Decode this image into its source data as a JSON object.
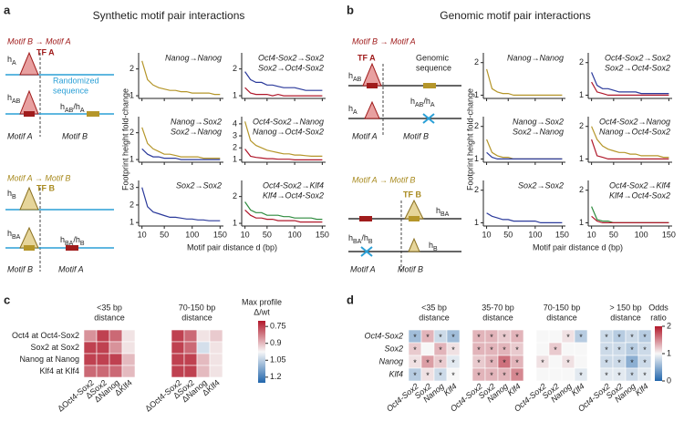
{
  "x": [
    10,
    20,
    30,
    40,
    50,
    60,
    70,
    80,
    90,
    100,
    110,
    120,
    130,
    140,
    150
  ],
  "xlim": [
    4,
    156
  ],
  "xticks": [
    10,
    50,
    100,
    150
  ],
  "a": {
    "label": "a",
    "title": "Synthetic motif pair interactions",
    "y_label": "Footprint height fold-change",
    "x_label": "Motif pair distance d (bp)",
    "diagram": {
      "title_top": "Motif B → Motif A",
      "h_top": [
        "h",
        "A"
      ],
      "tf_top": "TF A",
      "seq": [
        "Randomized",
        "sequence"
      ],
      "h_mid": [
        "h",
        "AB"
      ],
      "ratio_top": [
        "h",
        "AB",
        "/h",
        "A"
      ],
      "motif_a": "Motif A",
      "motif_b": "Motif B",
      "title_bottom": "Motif A → Motif B",
      "h_b": [
        "h",
        "B"
      ],
      "tf_bottom": "TF B",
      "h_ba": [
        "h",
        "BA"
      ],
      "ratio_bottom": [
        "h",
        "BA",
        "/h",
        "B"
      ],
      "motif_b2": "Motif B",
      "motif_a2": "Motif A"
    },
    "plots": [
      {
        "ylim": [
          0.9,
          2.6
        ],
        "yticks": [
          1,
          2
        ],
        "texts": [
          {
            "text": "Nanog→Nanog",
            "color": "#a88a1e"
          }
        ],
        "series": [
          {
            "color": "#b5962a",
            "values": [
              2.3,
              1.6,
              1.4,
              1.3,
              1.25,
              1.2,
              1.2,
              1.15,
              1.15,
              1.1,
              1.1,
              1.1,
              1.1,
              1.05,
              1.05
            ]
          }
        ]
      },
      {
        "ylim": [
          0.9,
          2.6
        ],
        "yticks": [
          1,
          2
        ],
        "texts": [
          {
            "text": "Oct4-Sox2→Sox2",
            "color": "#2b3a9b"
          },
          {
            "text": "Sox2→Oct4-Sox2",
            "color": "#b0182b"
          }
        ],
        "series": [
          {
            "color": "#2b3a9b",
            "values": [
              1.9,
              1.6,
              1.5,
              1.5,
              1.4,
              1.4,
              1.35,
              1.3,
              1.3,
              1.3,
              1.25,
              1.2,
              1.2,
              1.2,
              1.2
            ]
          },
          {
            "color": "#b0182b",
            "values": [
              1.3,
              1.1,
              1.05,
              1.05,
              1.05,
              1.0,
              1.05,
              1.0,
              1.0,
              1.0,
              1.0,
              1.0,
              1.0,
              1.0,
              1.0
            ]
          }
        ]
      },
      {
        "ylim": [
          0.9,
          2.6
        ],
        "yticks": [
          1,
          2
        ],
        "texts": [
          {
            "text": "Nanog→Sox2",
            "color": "#2b3a9b"
          },
          {
            "text": "Sox2→Nanog",
            "color": "#a88a1e"
          }
        ],
        "series": [
          {
            "color": "#b5962a",
            "values": [
              2.2,
              1.6,
              1.4,
              1.3,
              1.2,
              1.2,
              1.15,
              1.1,
              1.1,
              1.1,
              1.1,
              1.05,
              1.05,
              1.05,
              1.05
            ]
          },
          {
            "color": "#2b3a9b",
            "values": [
              1.4,
              1.2,
              1.1,
              1.1,
              1.05,
              1.05,
              1.05,
              1.0,
              1.0,
              1.0,
              1.0,
              1.0,
              1.0,
              1.0,
              1.0
            ]
          }
        ]
      },
      {
        "ylim": [
          0.8,
          4.6
        ],
        "yticks": [
          1,
          2,
          3,
          4
        ],
        "texts": [
          {
            "text": "Oct4-Sox2→Nanog",
            "color": "#a88a1e"
          },
          {
            "text": "Nanog→Oct4-Sox2",
            "color": "#b0182b"
          }
        ],
        "series": [
          {
            "color": "#b5962a",
            "values": [
              4.2,
              2.6,
              2.2,
              2.0,
              1.8,
              1.7,
              1.6,
              1.5,
              1.5,
              1.4,
              1.4,
              1.35,
              1.3,
              1.3,
              1.3
            ]
          },
          {
            "color": "#b0182b",
            "values": [
              1.9,
              1.3,
              1.2,
              1.15,
              1.1,
              1.1,
              1.05,
              1.05,
              1.05,
              1.0,
              1.0,
              1.0,
              1.0,
              1.0,
              1.0
            ]
          }
        ]
      },
      {
        "ylim": [
          0.8,
          3.4
        ],
        "yticks": [
          1,
          2,
          3
        ],
        "texts": [
          {
            "text": "Sox2→Sox2",
            "color": "#2b3a9b"
          }
        ],
        "series": [
          {
            "color": "#2b3a9b",
            "values": [
              3.0,
              1.9,
              1.6,
              1.5,
              1.4,
              1.3,
              1.3,
              1.25,
              1.2,
              1.2,
              1.15,
              1.15,
              1.1,
              1.1,
              1.1
            ]
          }
        ]
      },
      {
        "ylim": [
          0.9,
          2.6
        ],
        "yticks": [
          1,
          2
        ],
        "texts": [
          {
            "text": "Oct4-Sox2→Klf4",
            "color": "#2e8b3e"
          },
          {
            "text": "Klf4→Oct4-Sox2",
            "color": "#b0182b"
          }
        ],
        "series": [
          {
            "color": "#2e8b3e",
            "values": [
              1.8,
              1.5,
              1.4,
              1.4,
              1.3,
              1.3,
              1.3,
              1.25,
              1.25,
              1.2,
              1.2,
              1.2,
              1.2,
              1.15,
              1.15
            ]
          },
          {
            "color": "#b0182b",
            "values": [
              1.5,
              1.3,
              1.2,
              1.2,
              1.15,
              1.15,
              1.1,
              1.1,
              1.1,
              1.1,
              1.05,
              1.05,
              1.05,
              1.05,
              1.05
            ]
          }
        ]
      }
    ]
  },
  "b": {
    "label": "b",
    "title": "Genomic motif pair interactions",
    "y_label": "Footprint height fold-change",
    "x_label": "Motif pair distance d (bp)",
    "diagram": {
      "title_top": "Motif B → Motif A",
      "tf_top": "TF A",
      "h_ab": [
        "h",
        "AB"
      ],
      "seq": [
        "Genomic",
        "sequence"
      ],
      "ratio_top": [
        "h",
        "AB",
        "/h",
        "A"
      ],
      "h_a": [
        "h",
        "A"
      ],
      "motif_a": "Motif A",
      "motif_b": "Motif B",
      "title_bottom": "Motif A → Motif B",
      "tf_bottom": "TF B",
      "h_ba": [
        "h",
        "BA"
      ],
      "ratio_bottom": [
        "h",
        "BA",
        "/h",
        "B"
      ],
      "h_b": [
        "h",
        "B"
      ],
      "motif_a2": "Motif A",
      "motif_b2": "Motif B"
    },
    "plots": [
      {
        "ylim": [
          0.9,
          2.3
        ],
        "yticks": [
          1,
          2
        ],
        "texts": [
          {
            "text": "Nanog→Nanog",
            "color": "#a88a1e"
          }
        ],
        "series": [
          {
            "color": "#b5962a",
            "values": [
              1.8,
              1.2,
              1.1,
              1.05,
              1.05,
              1.0,
              1.0,
              1.0,
              1.0,
              1.0,
              1.0,
              1.0,
              1.0,
              1.0,
              1.0
            ]
          }
        ]
      },
      {
        "ylim": [
          0.9,
          2.3
        ],
        "yticks": [
          1,
          2
        ],
        "texts": [
          {
            "text": "Oct4-Sox2→Sox2",
            "color": "#2b3a9b"
          },
          {
            "text": "Sox2→Oct4-Sox2",
            "color": "#b0182b"
          }
        ],
        "series": [
          {
            "color": "#2b3a9b",
            "values": [
              1.7,
              1.3,
              1.2,
              1.2,
              1.15,
              1.1,
              1.1,
              1.1,
              1.1,
              1.05,
              1.05,
              1.05,
              1.05,
              1.05,
              1.05
            ]
          },
          {
            "color": "#b0182b",
            "values": [
              1.4,
              1.1,
              1.05,
              1.0,
              1.0,
              1.0,
              1.0,
              1.0,
              1.0,
              1.0,
              1.0,
              1.0,
              1.0,
              1.0,
              1.0
            ]
          }
        ]
      },
      {
        "ylim": [
          0.9,
          2.3
        ],
        "yticks": [
          1,
          2
        ],
        "texts": [
          {
            "text": "Nanog→Sox2",
            "color": "#2b3a9b"
          },
          {
            "text": "Sox2→Nanog",
            "color": "#a88a1e"
          }
        ],
        "series": [
          {
            "color": "#b5962a",
            "values": [
              1.6,
              1.2,
              1.1,
              1.05,
              1.05,
              1.0,
              1.0,
              1.0,
              1.0,
              1.0,
              1.0,
              1.0,
              1.0,
              1.0,
              1.0
            ]
          },
          {
            "color": "#2b3a9b",
            "values": [
              1.2,
              1.05,
              1.0,
              1.0,
              1.0,
              1.0,
              1.0,
              1.0,
              1.0,
              1.0,
              1.0,
              1.0,
              1.0,
              1.0,
              1.0
            ]
          }
        ]
      },
      {
        "ylim": [
          0.9,
          2.3
        ],
        "yticks": [
          1,
          2
        ],
        "texts": [
          {
            "text": "Oct4-Sox2→Nanog",
            "color": "#a88a1e"
          },
          {
            "text": "Nanog→Oct4-Sox2",
            "color": "#b0182b"
          }
        ],
        "series": [
          {
            "color": "#b5962a",
            "values": [
              2.0,
              1.6,
              1.4,
              1.3,
              1.25,
              1.2,
              1.2,
              1.15,
              1.15,
              1.1,
              1.1,
              1.1,
              1.1,
              1.05,
              1.05
            ]
          },
          {
            "color": "#b0182b",
            "values": [
              1.6,
              1.1,
              1.05,
              1.0,
              1.0,
              1.0,
              1.0,
              1.0,
              1.0,
              1.0,
              1.0,
              1.0,
              1.0,
              1.0,
              1.0
            ]
          }
        ]
      },
      {
        "ylim": [
          0.9,
          2.3
        ],
        "yticks": [
          1,
          2
        ],
        "texts": [
          {
            "text": "Sox2→Sox2",
            "color": "#2b3a9b"
          }
        ],
        "series": [
          {
            "color": "#2b3a9b",
            "values": [
              1.3,
              1.2,
              1.15,
              1.1,
              1.1,
              1.05,
              1.05,
              1.05,
              1.05,
              1.05,
              1.0,
              1.0,
              1.0,
              1.0,
              1.0
            ]
          }
        ]
      },
      {
        "ylim": [
          0.9,
          2.3
        ],
        "yticks": [
          1,
          2
        ],
        "texts": [
          {
            "text": "Oct4-Sox2→Klf4",
            "color": "#2e8b3e"
          },
          {
            "text": "Klf4→Oct4-Sox2",
            "color": "#b0182b"
          }
        ],
        "series": [
          {
            "color": "#2e8b3e",
            "values": [
              1.5,
              1.1,
              1.05,
              1.05,
              1.0,
              1.0,
              1.0,
              1.0,
              1.0,
              1.0,
              1.0,
              1.0,
              1.0,
              1.0,
              1.0
            ]
          },
          {
            "color": "#b0182b",
            "values": [
              1.2,
              1.05,
              1.0,
              1.0,
              1.0,
              1.0,
              1.0,
              1.0,
              1.0,
              1.0,
              1.0,
              1.0,
              1.0,
              1.0,
              1.0
            ]
          }
        ]
      }
    ]
  },
  "c": {
    "label": "c",
    "rows": [
      "Oct4 at Oct4-Sox2",
      "Sox2 at Sox2",
      "Nanog at Nanog",
      "Klf4 at Klf4"
    ],
    "cmap": [
      "#b2182b",
      "#f7f7f7",
      "#2166ac"
    ],
    "colorbar_title": [
      "Max profile",
      "Δ/wt"
    ],
    "clim": [
      0.7,
      1.25
    ],
    "cticks": [
      0.75,
      0.9,
      1.05,
      1.2
    ],
    "blocks": [
      {
        "header": [
          "<35 bp",
          "distance"
        ],
        "cols": [
          "ΔOct4-Sox2",
          "ΔSox2",
          "ΔNanog",
          "ΔKlf4"
        ],
        "values": [
          [
            0.85,
            0.75,
            0.8,
            0.95
          ],
          [
            0.75,
            0.75,
            0.85,
            0.95
          ],
          [
            0.75,
            0.75,
            0.75,
            0.9
          ],
          [
            0.8,
            0.8,
            0.8,
            0.9
          ]
        ]
      },
      {
        "header": [
          "70-150 bp",
          "distance"
        ],
        "cols": [
          "ΔOct4-Sox2",
          "ΔSox2",
          "ΔNanog",
          "ΔKlf4"
        ],
        "values": [
          [
            0.75,
            0.8,
            0.95,
            0.92
          ],
          [
            0.75,
            0.8,
            1.02,
            0.95
          ],
          [
            0.75,
            0.75,
            0.9,
            0.95
          ],
          [
            0.75,
            0.75,
            0.9,
            0.95
          ]
        ]
      }
    ]
  },
  "d": {
    "label": "d",
    "rows": [
      "Oct4-Sox2",
      "Sox2",
      "Nanog",
      "Klf4"
    ],
    "cmap": [
      "#b2182b",
      "#f7f7f7",
      "#2166ac"
    ],
    "colorbar_title": [
      "Odds",
      "ratio"
    ],
    "clim": [
      2,
      0
    ],
    "cticks": [
      2,
      1,
      0
    ],
    "blocks": [
      {
        "header": [
          "<35 bp",
          "distance"
        ],
        "cols": [
          "Oct4-Sox2",
          "Sox2",
          "Nanog",
          "Klf4"
        ],
        "values": [
          [
            0.6,
            1.3,
            0.8,
            0.6
          ],
          [
            1.2,
            1.0,
            1.3,
            1.1
          ],
          [
            1.1,
            1.4,
            1.2,
            0.9
          ],
          [
            0.7,
            1.1,
            0.8,
            1.0
          ]
        ],
        "labels": [
          [
            "*",
            "*",
            "*",
            "*"
          ],
          [
            "*",
            null,
            "*",
            "*"
          ],
          [
            "*",
            "*",
            "*",
            "*"
          ],
          [
            "*",
            "*",
            "*",
            "*"
          ]
        ]
      },
      {
        "header": [
          "35-70 bp",
          "distance"
        ],
        "cols": [
          "Oct4-Sox2",
          "Sox2",
          "Nanog",
          "Klf4"
        ],
        "values": [
          [
            1.3,
            1.3,
            1.2,
            1.3
          ],
          [
            1.3,
            1.3,
            1.3,
            1.2
          ],
          [
            1.2,
            1.3,
            1.6,
            1.3
          ],
          [
            1.3,
            1.3,
            1.3,
            1.5
          ]
        ],
        "labels": [
          [
            "*",
            "*",
            "*",
            "*"
          ],
          [
            "*",
            "*",
            "*",
            "*"
          ],
          [
            "*",
            "*",
            "*",
            "*"
          ],
          [
            "*",
            "*",
            "*",
            "*"
          ]
        ]
      },
      {
        "header": [
          "70-150 bp",
          "distance"
        ],
        "cols": [
          "Oct4-Sox2",
          "Sox2",
          "Nanog",
          "Klf4"
        ],
        "values": [
          [
            1.0,
            1.0,
            1.1,
            0.7
          ],
          [
            1.0,
            1.2,
            1.0,
            1.0
          ],
          [
            1.1,
            1.0,
            1.1,
            1.0
          ],
          [
            1.0,
            1.0,
            1.0,
            0.9
          ]
        ],
        "labels": [
          [
            null,
            null,
            "*",
            "*"
          ],
          [
            null,
            "*",
            null,
            null
          ],
          [
            "*",
            null,
            "*",
            null
          ],
          [
            null,
            null,
            null,
            "*"
          ]
        ]
      },
      {
        "header": [
          "> 150 bp",
          "distance"
        ],
        "cols": [
          "Oct4-Sox2",
          "Sox2",
          "Nanog",
          "Klf4"
        ],
        "values": [
          [
            0.8,
            0.7,
            0.8,
            0.7
          ],
          [
            0.8,
            0.8,
            0.7,
            0.8
          ],
          [
            0.8,
            0.8,
            0.5,
            0.8
          ],
          [
            0.9,
            0.9,
            0.8,
            0.9
          ]
        ],
        "labels": [
          [
            "*",
            "*",
            "*",
            "*"
          ],
          [
            "*",
            "*",
            "*",
            "*"
          ],
          [
            "*",
            "*",
            "*",
            "*"
          ],
          [
            "*",
            "*",
            "*",
            "*"
          ]
        ]
      }
    ]
  }
}
